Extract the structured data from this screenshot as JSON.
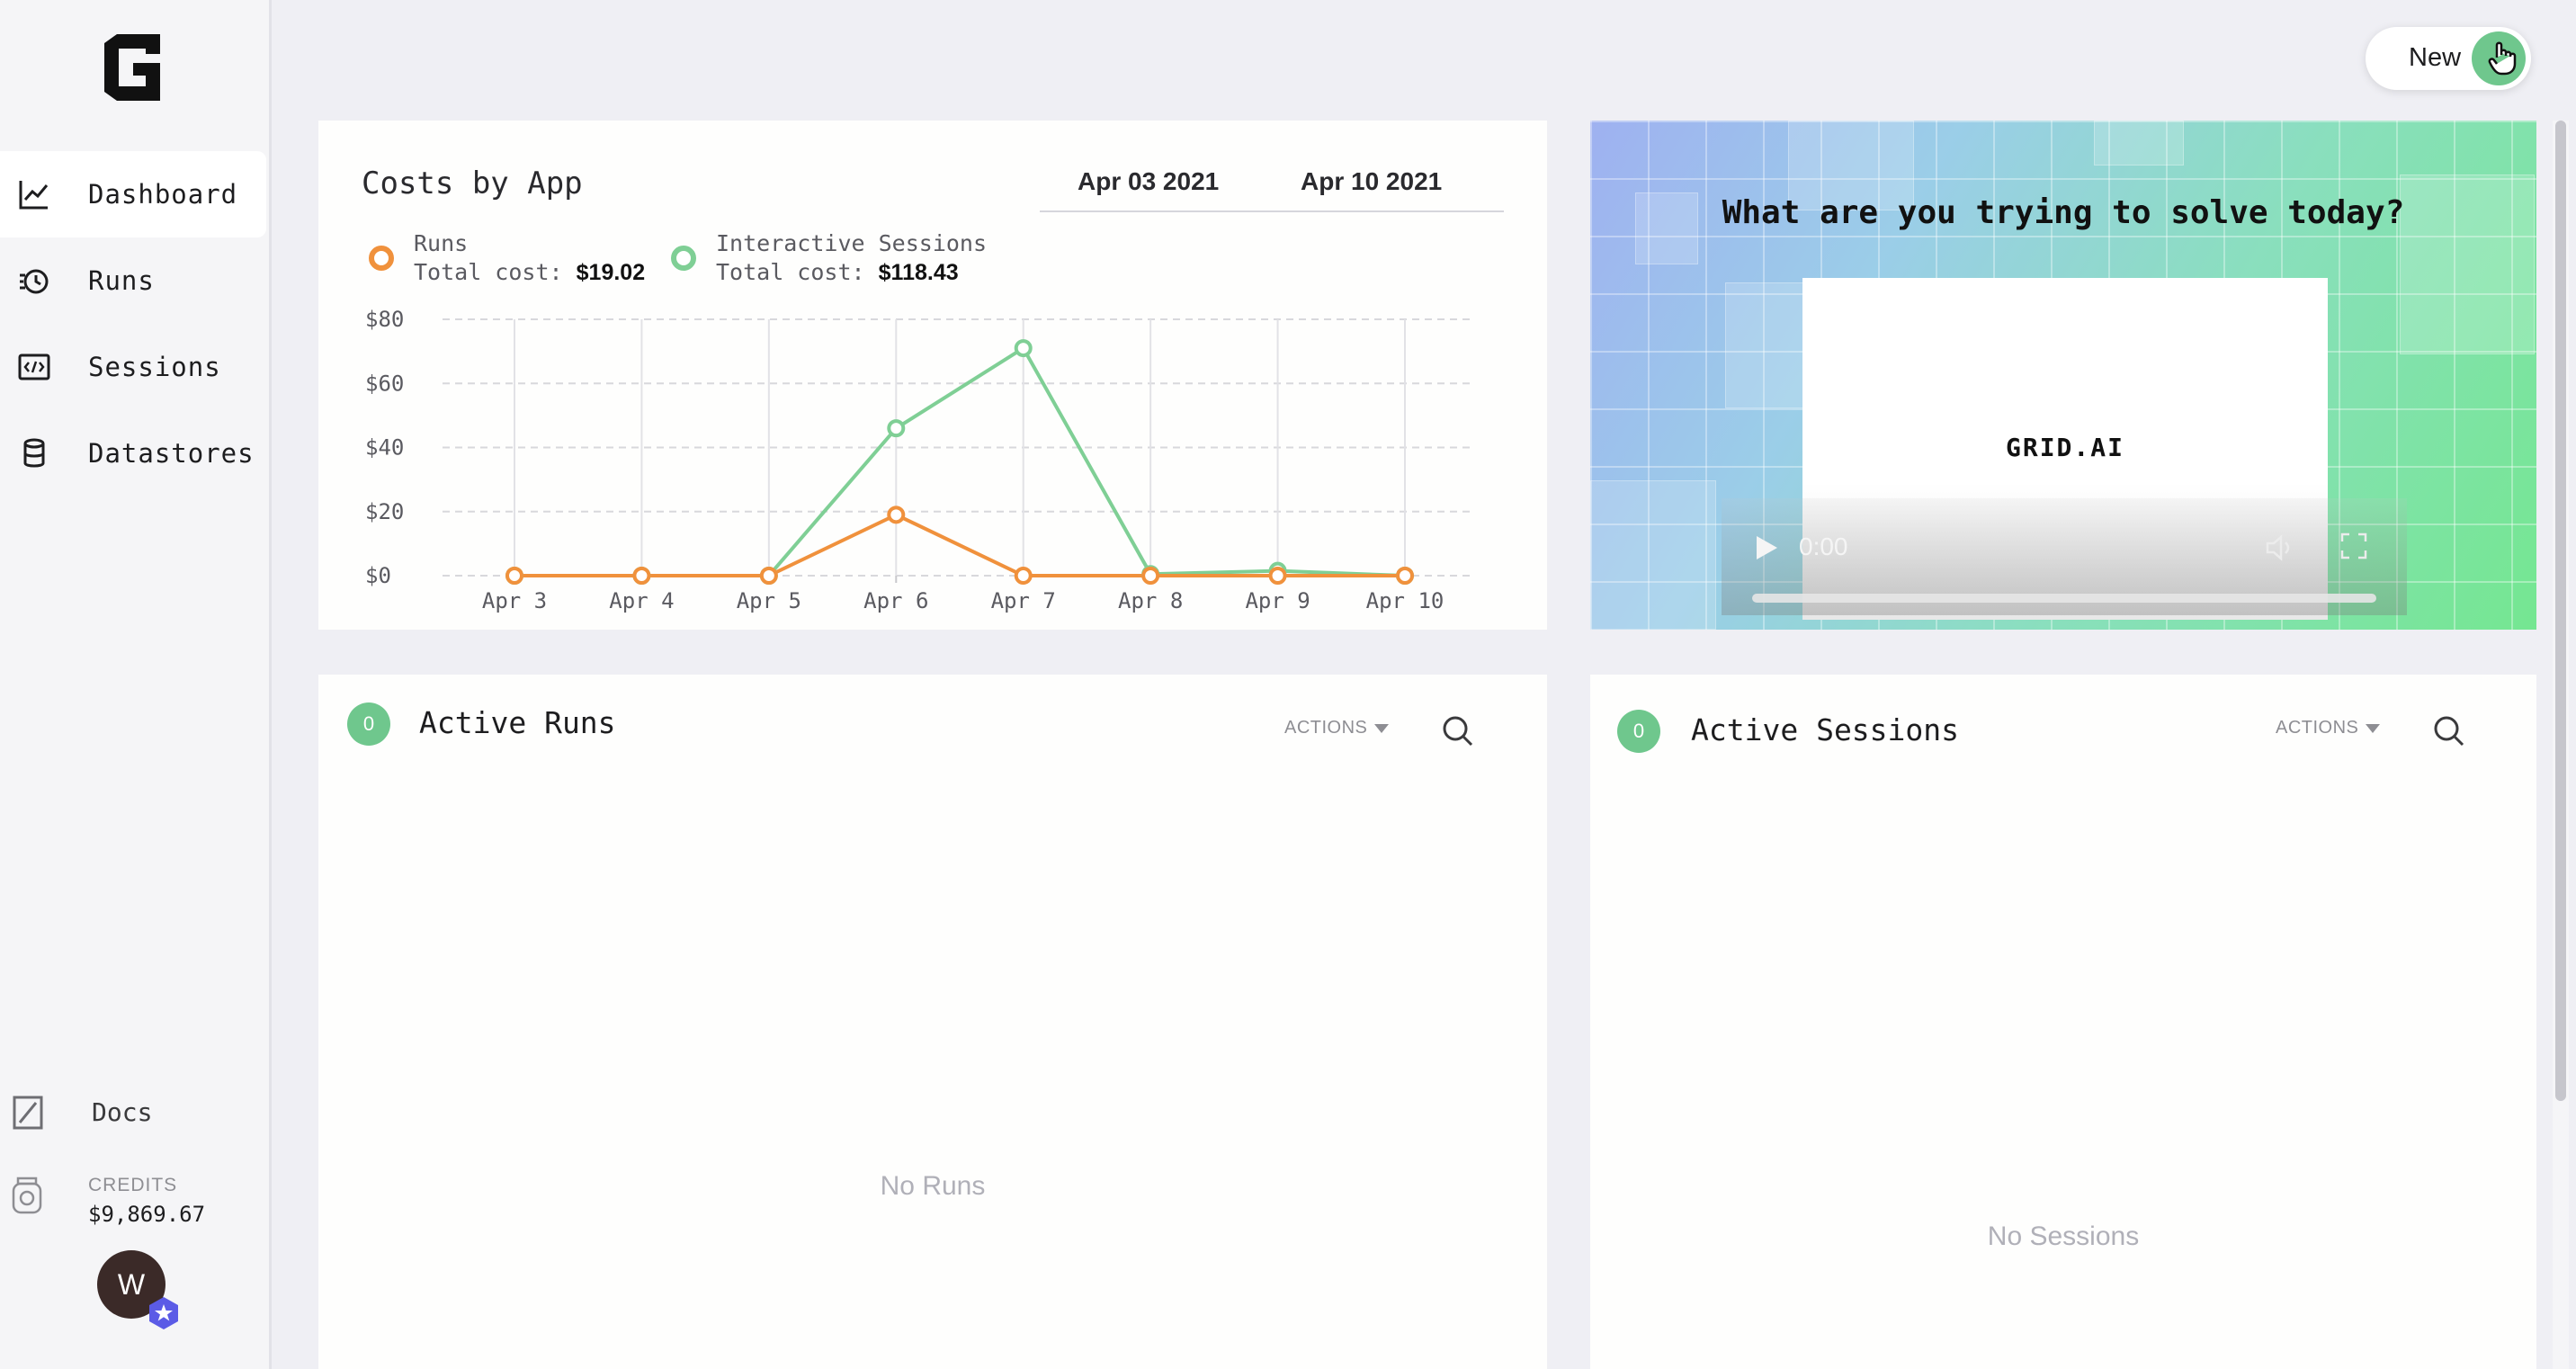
{
  "nav": {
    "items": [
      {
        "label": "Dashboard",
        "icon": "chart-line-icon"
      },
      {
        "label": "Runs",
        "icon": "runs-icon"
      },
      {
        "label": "Sessions",
        "icon": "code-window-icon"
      },
      {
        "label": "Datastores",
        "icon": "database-icon"
      }
    ],
    "docs": "Docs",
    "credits_label": "CREDITS",
    "credits_value": "$9,869.67",
    "avatar_initial": "W"
  },
  "header": {
    "new_label": "New"
  },
  "costs": {
    "title": "Costs by App",
    "date_from": "Apr 03 2021",
    "date_to": "Apr 10 2021",
    "legend": [
      {
        "name": "Runs",
        "total_label": "Total cost:",
        "total": "$19.02",
        "color": "#f0913c"
      },
      {
        "name": "Interactive Sessions",
        "total_label": "Total cost:",
        "total": "$118.43",
        "color": "#7fcf95"
      }
    ]
  },
  "chart_data": {
    "type": "line",
    "title": "Costs by App",
    "x": [
      "Apr 3",
      "Apr 4",
      "Apr 5",
      "Apr 6",
      "Apr 7",
      "Apr 8",
      "Apr 9",
      "Apr 10"
    ],
    "y_ticks": [
      "$80",
      "$60",
      "$40",
      "$20",
      "$0"
    ],
    "ylim": [
      0,
      80
    ],
    "grid": true,
    "series": [
      {
        "name": "Runs",
        "color": "#f0913c",
        "values": [
          0,
          0,
          0,
          19,
          0,
          0,
          0,
          0
        ]
      },
      {
        "name": "Interactive Sessions",
        "color": "#7fcf95",
        "values": [
          0,
          0,
          0,
          46,
          71,
          0.5,
          1.5,
          0
        ]
      }
    ]
  },
  "video": {
    "question": "What are you trying to solve today?",
    "logo": "GRID.AI",
    "time": "0:00"
  },
  "runs": {
    "count": "0",
    "title": "Active Runs",
    "actions": "ACTIONS",
    "empty": "No Runs"
  },
  "sessions": {
    "count": "0",
    "title": "Active Sessions",
    "actions": "ACTIONS",
    "empty": "No Sessions"
  }
}
